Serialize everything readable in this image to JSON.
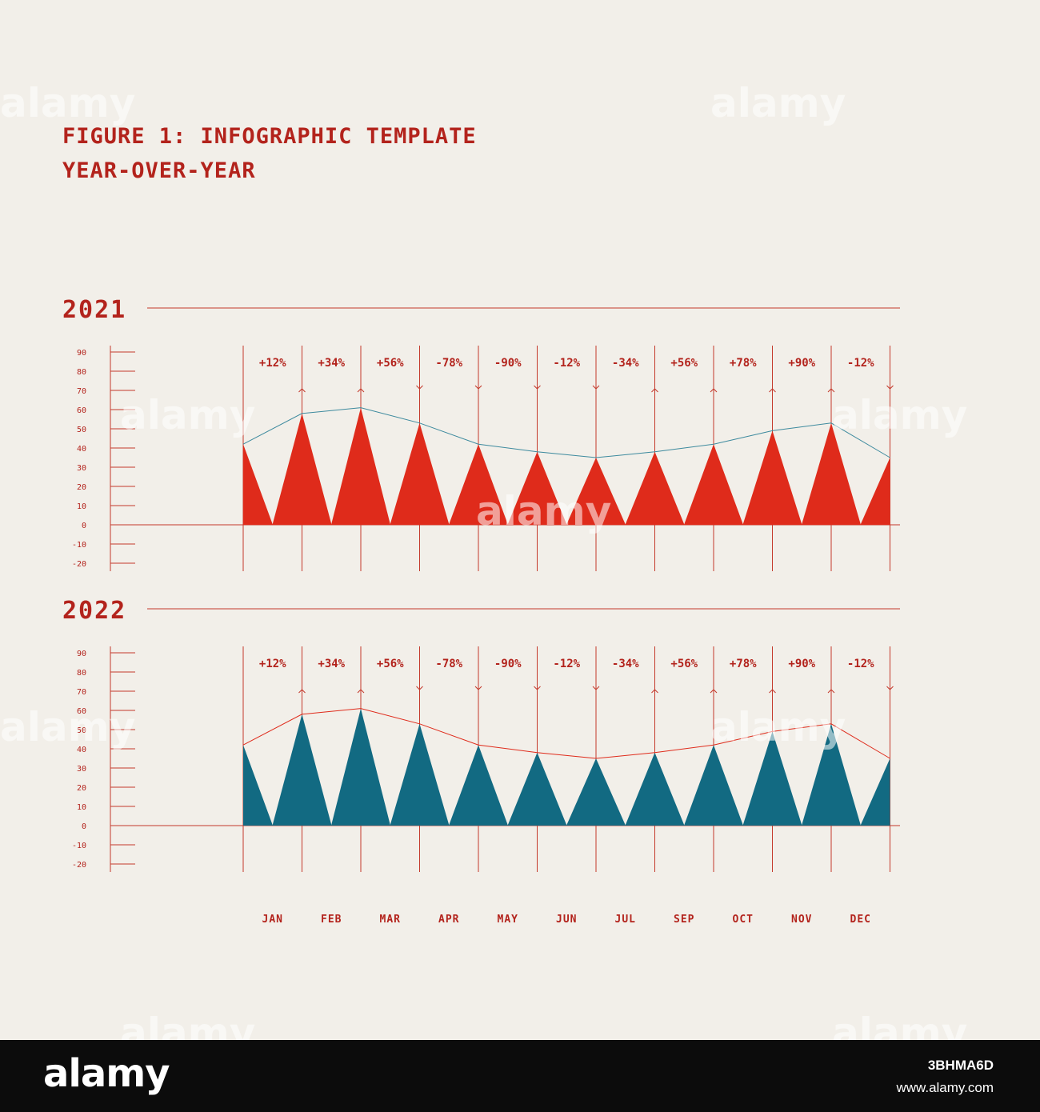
{
  "title_line1": "FIGURE 1: INFOGRAPHIC TEMPLATE",
  "title_line2": "YEAR-OVER-YEAR",
  "colors": {
    "background": "#f2efe9",
    "accent_red": "#df2b1b",
    "accent_teal": "#126a82",
    "line_color": "#c43a2c",
    "text_red": "#b3231c"
  },
  "chart_data": [
    {
      "type": "area",
      "panel_label": "2021",
      "fill_color": "#df2b1b",
      "trend_line_color": "#3d8a9e",
      "y_ticks": [
        90,
        80,
        70,
        60,
        50,
        40,
        30,
        20,
        10,
        0,
        -10,
        -20
      ],
      "ylim": [
        -20,
        90
      ],
      "x": [
        "JAN",
        "FEB",
        "MAR",
        "APR",
        "MAY",
        "JUN",
        "JUL",
        "SEP",
        "OCT",
        "NOV",
        "DEC"
      ],
      "change_labels": [
        "+12%",
        "+34%",
        "+56%",
        "-78%",
        "-90%",
        "-12%",
        "-34%",
        "+56%",
        "+78%",
        "+90%",
        "-12%"
      ],
      "boundary_arrows": [
        "up",
        "up",
        "down",
        "down",
        "down",
        "down",
        "up",
        "up",
        "up",
        "up",
        "down"
      ],
      "peaks": [
        42,
        58,
        61,
        53,
        42,
        38,
        35,
        38,
        42,
        49,
        53,
        35
      ]
    },
    {
      "type": "area",
      "panel_label": "2022",
      "fill_color": "#126a82",
      "trend_line_color": "#df2b1b",
      "y_ticks": [
        90,
        80,
        70,
        60,
        50,
        40,
        30,
        20,
        10,
        0,
        -10,
        -20
      ],
      "ylim": [
        -20,
        90
      ],
      "x": [
        "JAN",
        "FEB",
        "MAR",
        "APR",
        "MAY",
        "JUN",
        "JUL",
        "SEP",
        "OCT",
        "NOV",
        "DEC"
      ],
      "change_labels": [
        "+12%",
        "+34%",
        "+56%",
        "-78%",
        "-90%",
        "-12%",
        "-34%",
        "+56%",
        "+78%",
        "+90%",
        "-12%"
      ],
      "boundary_arrows": [
        "up",
        "up",
        "down",
        "down",
        "down",
        "down",
        "up",
        "up",
        "up",
        "up",
        "down"
      ],
      "peaks": [
        42,
        58,
        61,
        53,
        42,
        38,
        35,
        38,
        42,
        49,
        53,
        35
      ]
    }
  ],
  "footer": {
    "logo_text": "alamy",
    "stock_code": "3BHMA6D",
    "url": "www.alamy.com"
  },
  "watermark_text": "alamy"
}
